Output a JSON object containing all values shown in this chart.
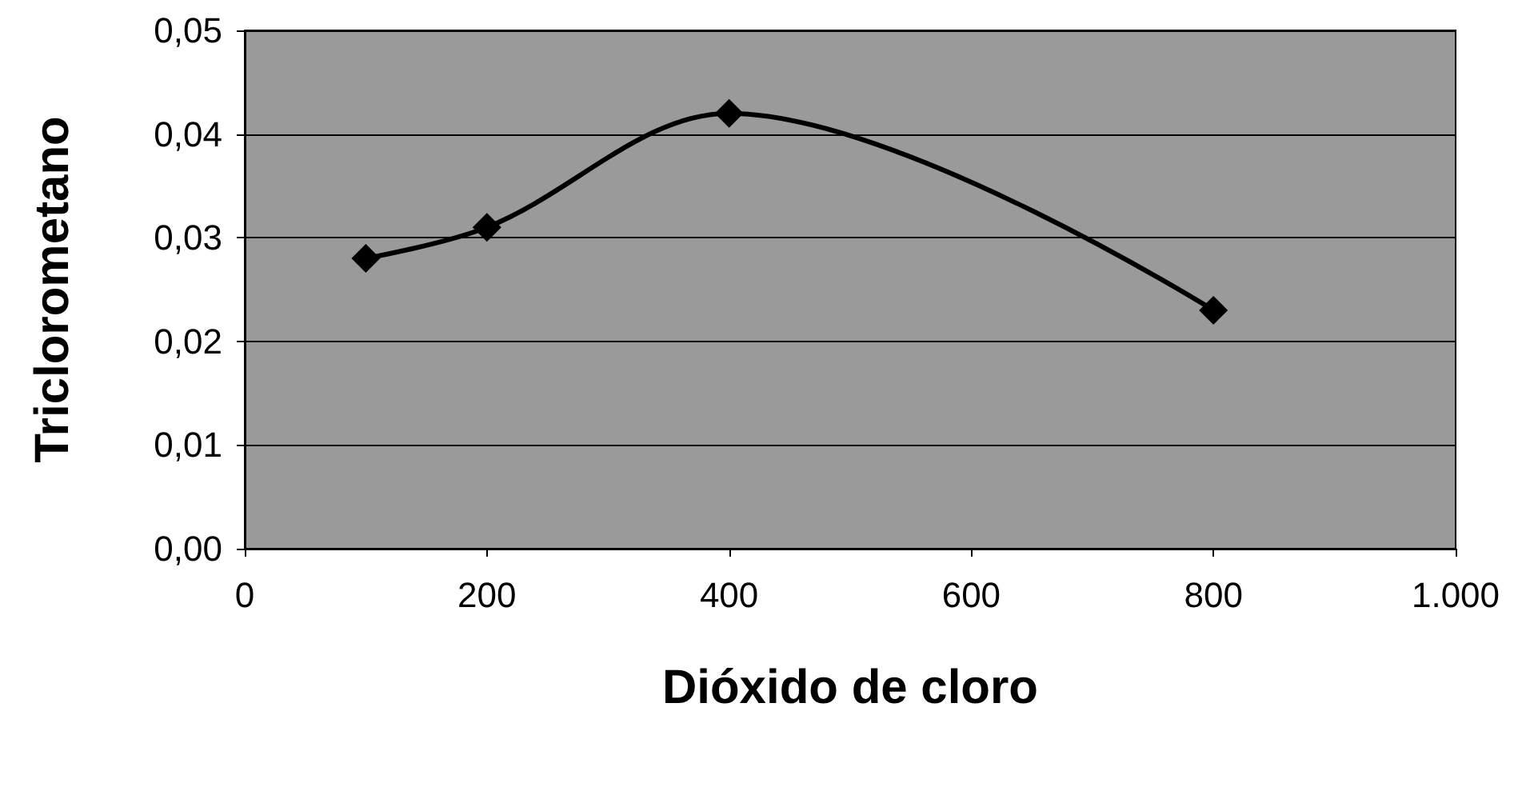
{
  "chart_data": {
    "type": "line",
    "xlabel": "Dióxido de cloro",
    "ylabel": "Triclorometano",
    "x": [
      100,
      200,
      400,
      800
    ],
    "series": [
      {
        "color": "#000000",
        "values": [
          0.028,
          0.031,
          0.042,
          0.023
        ]
      }
    ],
    "xlim": [
      0,
      1000
    ],
    "ylim": [
      0,
      0.05
    ],
    "xticks": [
      0,
      200,
      400,
      600,
      800,
      {
        "value": 1000,
        "label": "1.000"
      }
    ],
    "yticks": [
      {
        "value": 0,
        "label": "0,00"
      },
      {
        "value": 0.01,
        "label": "0,01"
      },
      {
        "value": 0.02,
        "label": "0,02"
      },
      {
        "value": 0.03,
        "label": "0,03"
      },
      {
        "value": 0.04,
        "label": "0,04"
      },
      {
        "value": 0.05,
        "label": "0,05"
      }
    ],
    "grid": "y",
    "marker": "diamond",
    "line_style": "solid"
  }
}
